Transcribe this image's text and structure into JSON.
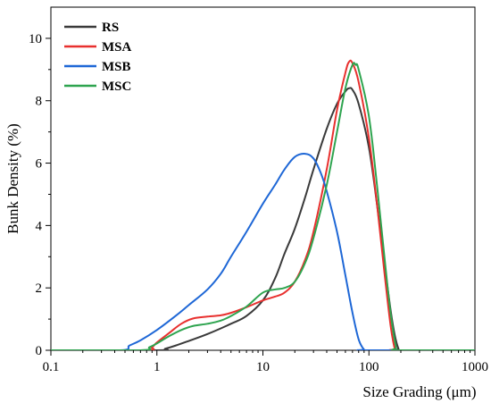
{
  "chart_data": {
    "type": "line",
    "title": "",
    "xlabel": "Size Grading (μm)",
    "ylabel": "Bunk Density (%)",
    "x_scale": "log",
    "xlim": [
      0.1,
      1000
    ],
    "ylim": [
      0,
      11
    ],
    "x_ticks": [
      {
        "value": 0.1,
        "label": "0.1"
      },
      {
        "value": 1,
        "label": "1"
      },
      {
        "value": 10,
        "label": "10"
      },
      {
        "value": 100,
        "label": "100"
      },
      {
        "value": 1000,
        "label": "1000"
      }
    ],
    "y_ticks": [
      {
        "value": 0,
        "label": "0"
      },
      {
        "value": 2,
        "label": "2"
      },
      {
        "value": 4,
        "label": "4"
      },
      {
        "value": 6,
        "label": "6"
      },
      {
        "value": 8,
        "label": "8"
      },
      {
        "value": 10,
        "label": "10"
      }
    ],
    "grid": false,
    "legend_position": "top-left",
    "series": [
      {
        "name": "RS",
        "color": "#3a3a3a",
        "points": [
          [
            0.1,
            0
          ],
          [
            1,
            0
          ],
          [
            1.2,
            0.05
          ],
          [
            1.5,
            0.15
          ],
          [
            2,
            0.3
          ],
          [
            3,
            0.52
          ],
          [
            5,
            0.85
          ],
          [
            7,
            1.1
          ],
          [
            10,
            1.6
          ],
          [
            13,
            2.3
          ],
          [
            16,
            3.1
          ],
          [
            20,
            3.9
          ],
          [
            25,
            4.9
          ],
          [
            30,
            5.8
          ],
          [
            40,
            7.1
          ],
          [
            50,
            7.9
          ],
          [
            60,
            8.3
          ],
          [
            65,
            8.4
          ],
          [
            70,
            8.35
          ],
          [
            80,
            7.9
          ],
          [
            100,
            6.5
          ],
          [
            120,
            4.6
          ],
          [
            140,
            2.8
          ],
          [
            160,
            1.3
          ],
          [
            175,
            0.5
          ],
          [
            190,
            0.05
          ],
          [
            200,
            0
          ],
          [
            1000,
            0
          ]
        ]
      },
      {
        "name": "MSA",
        "color": "#e8302e",
        "points": [
          [
            0.1,
            0
          ],
          [
            0.75,
            0
          ],
          [
            0.9,
            0.1
          ],
          [
            1,
            0.25
          ],
          [
            1.3,
            0.55
          ],
          [
            1.7,
            0.85
          ],
          [
            2.2,
            1.02
          ],
          [
            3,
            1.08
          ],
          [
            4,
            1.12
          ],
          [
            5,
            1.2
          ],
          [
            7,
            1.38
          ],
          [
            10,
            1.6
          ],
          [
            13,
            1.72
          ],
          [
            16,
            1.85
          ],
          [
            20,
            2.2
          ],
          [
            25,
            2.9
          ],
          [
            30,
            3.8
          ],
          [
            40,
            5.8
          ],
          [
            50,
            7.7
          ],
          [
            60,
            8.9
          ],
          [
            65,
            9.25
          ],
          [
            70,
            9.2
          ],
          [
            80,
            8.6
          ],
          [
            100,
            6.8
          ],
          [
            120,
            4.6
          ],
          [
            140,
            2.5
          ],
          [
            160,
            0.8
          ],
          [
            175,
            0.05
          ],
          [
            180,
            0
          ],
          [
            1000,
            0
          ]
        ]
      },
      {
        "name": "MSB",
        "color": "#1e67d6",
        "points": [
          [
            0.1,
            0
          ],
          [
            0.45,
            0
          ],
          [
            0.55,
            0.15
          ],
          [
            0.7,
            0.32
          ],
          [
            1,
            0.65
          ],
          [
            1.5,
            1.1
          ],
          [
            2,
            1.45
          ],
          [
            3,
            1.95
          ],
          [
            4,
            2.45
          ],
          [
            5,
            3.0
          ],
          [
            7,
            3.8
          ],
          [
            10,
            4.7
          ],
          [
            13,
            5.3
          ],
          [
            16,
            5.8
          ],
          [
            20,
            6.2
          ],
          [
            25,
            6.3
          ],
          [
            30,
            6.15
          ],
          [
            35,
            5.7
          ],
          [
            40,
            5.1
          ],
          [
            50,
            3.8
          ],
          [
            60,
            2.4
          ],
          [
            70,
            1.2
          ],
          [
            80,
            0.35
          ],
          [
            90,
            0.02
          ],
          [
            95,
            0
          ],
          [
            1000,
            0
          ]
        ]
      },
      {
        "name": "MSC",
        "color": "#2ea44f",
        "points": [
          [
            0.1,
            0
          ],
          [
            0.7,
            0
          ],
          [
            0.85,
            0.1
          ],
          [
            1,
            0.22
          ],
          [
            1.3,
            0.45
          ],
          [
            1.7,
            0.65
          ],
          [
            2.2,
            0.78
          ],
          [
            3,
            0.85
          ],
          [
            4,
            0.95
          ],
          [
            5,
            1.1
          ],
          [
            7,
            1.4
          ],
          [
            10,
            1.85
          ],
          [
            13,
            1.95
          ],
          [
            16,
            2.0
          ],
          [
            20,
            2.2
          ],
          [
            25,
            2.8
          ],
          [
            30,
            3.6
          ],
          [
            40,
            5.3
          ],
          [
            50,
            7.0
          ],
          [
            60,
            8.4
          ],
          [
            70,
            9.15
          ],
          [
            75,
            9.15
          ],
          [
            80,
            9.0
          ],
          [
            100,
            7.5
          ],
          [
            120,
            5.2
          ],
          [
            140,
            3.0
          ],
          [
            160,
            1.2
          ],
          [
            180,
            0.1
          ],
          [
            190,
            0
          ],
          [
            1000,
            0
          ]
        ]
      }
    ]
  }
}
